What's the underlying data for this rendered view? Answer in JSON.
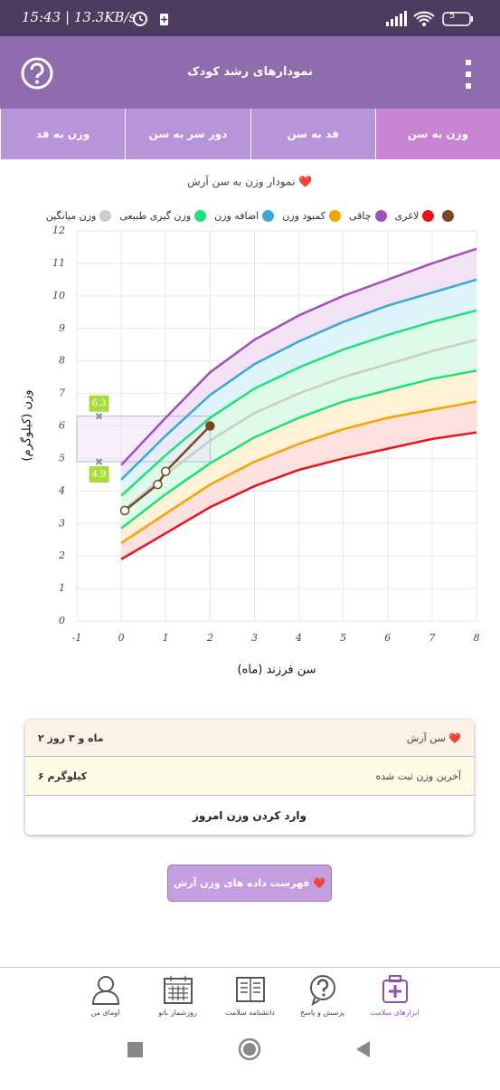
{
  "status_bar": {
    "time": "15:43 | 13.3KB/s",
    "battery": "5"
  },
  "header": {
    "title": "نمودارهای رشد کودک"
  },
  "tabs": {
    "items": [
      "وزن به سن",
      "قد به سن",
      "دور سر به سن",
      "وزن به قد"
    ],
    "active": 0
  },
  "chart": {
    "type": "line",
    "title": "نمودار وزن به سن آرش ❤️",
    "xlabel": "سن فرزند (ماه)",
    "ylabel": "وزن (کیلوگرم)",
    "legend": [
      {
        "name": "لاغری",
        "color": "#e8141e"
      },
      {
        "name": "چاقی",
        "color": "#a24fb6"
      },
      {
        "name": "کمبود وزن",
        "color": "#f5a300"
      },
      {
        "name": "اضافه وزن",
        "color": "#3aa9d0"
      },
      {
        "name": "وزن گیری طبیعی",
        "color": "#1fe07a"
      },
      {
        "name": "وزن میانگین",
        "color": "#cccccc"
      }
    ],
    "x": [
      0,
      1,
      2,
      3,
      4,
      5,
      6,
      7,
      8
    ],
    "series": [
      {
        "color": "#a24fb6",
        "fill": "#f3e2f6",
        "values": [
          4.8,
          6.25,
          7.65,
          8.65,
          9.4,
          10.0,
          10.5,
          11.0,
          11.45
        ]
      },
      {
        "color": "#3aa9d0",
        "fill": "#dff3fa",
        "values": [
          4.35,
          5.7,
          6.95,
          7.9,
          8.6,
          9.2,
          9.7,
          10.1,
          10.5
        ]
      },
      {
        "color": "#1fe07a",
        "fill": "#ddfbe8",
        "values": [
          3.85,
          5.1,
          6.25,
          7.15,
          7.8,
          8.35,
          8.8,
          9.2,
          9.55
        ]
      },
      {
        "color": "#cccccc",
        "fill": "#ddfbe8",
        "values": [
          3.35,
          4.5,
          5.55,
          6.4,
          7.0,
          7.5,
          7.9,
          8.3,
          8.65
        ]
      },
      {
        "color": "#1fe07a",
        "fill": "#fff2d6",
        "values": [
          2.85,
          3.9,
          4.85,
          5.65,
          6.25,
          6.75,
          7.1,
          7.45,
          7.7
        ]
      },
      {
        "color": "#f5a300",
        "fill": "#fde1df",
        "values": [
          2.4,
          3.3,
          4.2,
          4.9,
          5.45,
          5.9,
          6.25,
          6.5,
          6.75
        ]
      },
      {
        "color": "#e8141e",
        "values": [
          1.9,
          2.7,
          3.5,
          4.15,
          4.65,
          5.0,
          5.3,
          5.6,
          5.8
        ]
      }
    ],
    "child": {
      "color": "#7b4623",
      "x": [
        0.08,
        0.82,
        1.0,
        2.0
      ],
      "values": [
        3.4,
        4.2,
        4.6,
        6.0
      ]
    },
    "range": [
      6.3,
      4.9
    ],
    "range_color": "#a8dc3c",
    "xlim": [
      -1,
      8
    ],
    "xticks": [
      -1,
      0,
      1,
      2,
      3,
      4,
      5,
      6,
      7,
      8
    ],
    "ylim": [
      0,
      12
    ],
    "yticks": [
      0,
      1,
      2,
      3,
      4,
      5,
      6,
      7,
      8,
      9,
      10,
      11,
      12
    ],
    "grid": true
  },
  "summary": {
    "rows": [
      {
        "label": "سن آرش ❤️",
        "value": "۲ ماه و ۳ روز",
        "color": "#fdf1e6"
      },
      {
        "label": "آخرین وزن ثبت شده",
        "value": "۶ کیلوگرم",
        "color": "#fbfbe6"
      }
    ],
    "action": "وارد کردن وزن امروز"
  },
  "button": "فهرست داده های وزن آرش ❤️",
  "bottom_nav": {
    "items": [
      "ابزارهای سلامت",
      "پرسش و پاسخ",
      "دانشنامه سلامت",
      "روزشمار بانو",
      "اومای من"
    ],
    "active": 0
  }
}
